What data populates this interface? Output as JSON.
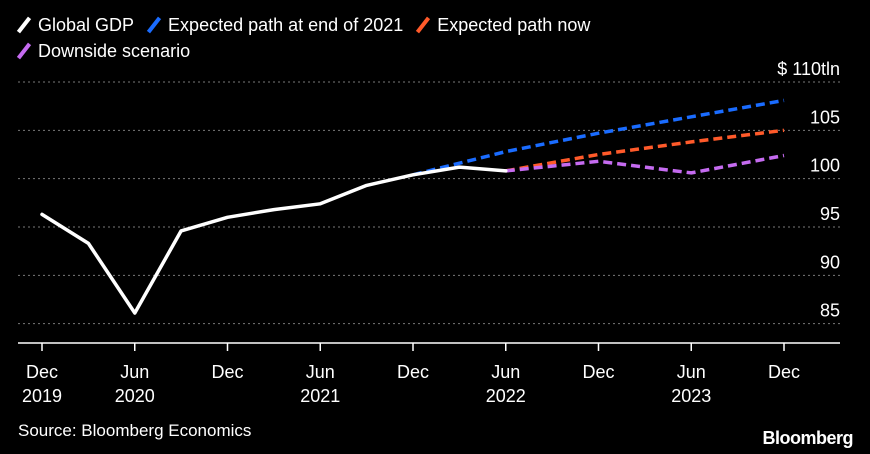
{
  "legend": {
    "items": [
      {
        "label": "Global GDP",
        "color": "#ffffff"
      },
      {
        "label": "Expected path at end of 2021",
        "color": "#1a6cff"
      },
      {
        "label": "Expected path now",
        "color": "#ff5a2a"
      },
      {
        "label": "Downside scenario",
        "color": "#c56bf0"
      }
    ]
  },
  "source": "Source: Bloomberg Economics",
  "brand": "Bloomberg",
  "chart_data": {
    "type": "line",
    "ylim": [
      83,
      110
    ],
    "y_ticks": [
      85,
      90,
      95,
      100,
      105,
      110
    ],
    "y_tick_labels": [
      "85",
      "90",
      "95",
      "100",
      "105",
      "$ 110tln"
    ],
    "x_ticks": [
      {
        "date": "2019-12",
        "line1": "Dec",
        "line2": "2019"
      },
      {
        "date": "2020-06",
        "line1": "Jun",
        "line2": "2020"
      },
      {
        "date": "2020-12",
        "line1": "Dec",
        "line2": ""
      },
      {
        "date": "2021-06",
        "line1": "Jun",
        "line2": "2021"
      },
      {
        "date": "2021-12",
        "line1": "Dec",
        "line2": ""
      },
      {
        "date": "2022-06",
        "line1": "Jun",
        "line2": "2022"
      },
      {
        "date": "2022-12",
        "line1": "Dec",
        "line2": ""
      },
      {
        "date": "2023-06",
        "line1": "Jun",
        "line2": "2023"
      },
      {
        "date": "2023-12",
        "line1": "Dec",
        "line2": ""
      }
    ],
    "series": [
      {
        "name": "Global GDP",
        "color": "#ffffff",
        "style": "solid",
        "points": [
          {
            "x": "2019-12",
            "y": 96.3
          },
          {
            "x": "2020-03",
            "y": 93.3
          },
          {
            "x": "2020-06",
            "y": 86.1
          },
          {
            "x": "2020-09",
            "y": 94.6
          },
          {
            "x": "2020-12",
            "y": 96.0
          },
          {
            "x": "2021-03",
            "y": 96.8
          },
          {
            "x": "2021-06",
            "y": 97.4
          },
          {
            "x": "2021-09",
            "y": 99.3
          },
          {
            "x": "2021-12",
            "y": 100.4
          },
          {
            "x": "2022-03",
            "y": 101.2
          },
          {
            "x": "2022-06",
            "y": 100.8
          }
        ]
      },
      {
        "name": "Expected path at end of 2021",
        "color": "#1a6cff",
        "style": "dashed",
        "points": [
          {
            "x": "2021-12",
            "y": 100.4
          },
          {
            "x": "2022-06",
            "y": 102.8
          },
          {
            "x": "2022-12",
            "y": 104.7
          },
          {
            "x": "2023-06",
            "y": 106.4
          },
          {
            "x": "2023-12",
            "y": 108.1
          }
        ]
      },
      {
        "name": "Expected path now",
        "color": "#ff5a2a",
        "style": "dashed",
        "points": [
          {
            "x": "2022-06",
            "y": 100.8
          },
          {
            "x": "2022-12",
            "y": 102.5
          },
          {
            "x": "2023-06",
            "y": 103.8
          },
          {
            "x": "2023-12",
            "y": 105.0
          }
        ]
      },
      {
        "name": "Downside scenario",
        "color": "#c56bf0",
        "style": "dashed",
        "points": [
          {
            "x": "2022-06",
            "y": 100.8
          },
          {
            "x": "2022-12",
            "y": 101.8
          },
          {
            "x": "2023-06",
            "y": 100.6
          },
          {
            "x": "2023-12",
            "y": 102.4
          }
        ]
      }
    ]
  }
}
